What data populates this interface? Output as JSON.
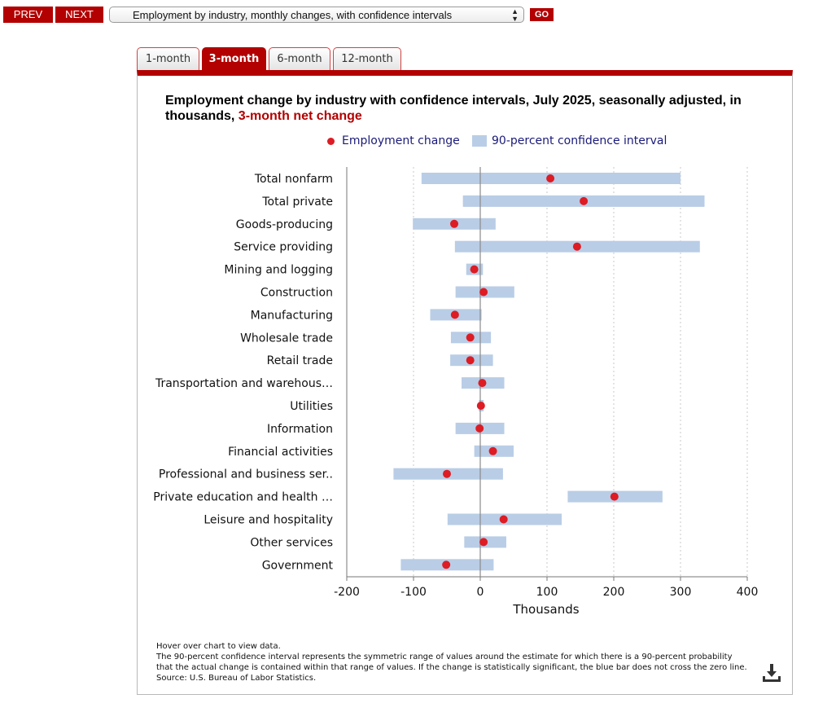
{
  "nav": {
    "prev_label": "PREV",
    "next_label": "NEXT",
    "select_value": "Employment by industry, monthly changes, with confidence intervals",
    "go_label": "GO"
  },
  "tabs": [
    {
      "label": "1-month",
      "active": false
    },
    {
      "label": "3-month",
      "active": true
    },
    {
      "label": "6-month",
      "active": false
    },
    {
      "label": "12-month",
      "active": false
    }
  ],
  "title": {
    "main": "Employment change by industry with confidence intervals, July 2025, seasonally adjusted, in thousands,",
    "sub": "3-month net change"
  },
  "legend": {
    "point_label": "Employment change",
    "interval_label": "90-percent confidence interval"
  },
  "colors": {
    "accent": "#b30000",
    "point": "#dd1c24",
    "interval": "#b9cde6",
    "legend_text": "#1a1a7a"
  },
  "chart_data": {
    "type": "dot-interval",
    "title": "Employment change by industry with confidence intervals, July 2025, seasonally adjusted, in thousands, 3-month net change",
    "xlabel": "Thousands",
    "xlim": [
      -200,
      400
    ],
    "xticks": [
      -200,
      -100,
      0,
      100,
      200,
      300,
      400
    ],
    "categories": [
      "Total nonfarm",
      "Total private",
      "Goods-producing",
      "Service providing",
      "Mining and logging",
      "Construction",
      "Manufacturing",
      "Wholesale trade",
      "Retail trade",
      "Transportation and warehous…",
      "Utilities",
      "Information",
      "Financial activities",
      "Professional and business ser..",
      "Private education and health …",
      "Leisure and hospitality",
      "Other services",
      "Government"
    ],
    "values": [
      105,
      155,
      -39,
      145,
      -9,
      5,
      -38,
      -15,
      -15,
      3,
      1,
      -1,
      19,
      -50,
      201,
      35,
      5,
      -51
    ],
    "ci_low": [
      -88,
      -26,
      -101,
      -38,
      -21,
      -37,
      -75,
      -44,
      -45,
      -28,
      -2,
      -37,
      -9,
      -130,
      131,
      -49,
      -24,
      -119
    ],
    "ci_high": [
      300,
      336,
      23,
      329,
      4,
      51,
      2,
      16,
      19,
      36,
      5,
      36,
      50,
      34,
      273,
      122,
      39,
      20
    ]
  },
  "footnote": {
    "line1": "Hover over chart to view data.",
    "line2": "The 90-percent confidence interval represents the symmetric range of values around the estimate for which there is a 90-percent probability",
    "line3": "that the actual change is contained within that range of values. If the change is statistically significant, the blue bar does not cross the zero line.",
    "line4": "Source: U.S. Bureau of Labor Statistics."
  },
  "download_icon": "download-icon"
}
